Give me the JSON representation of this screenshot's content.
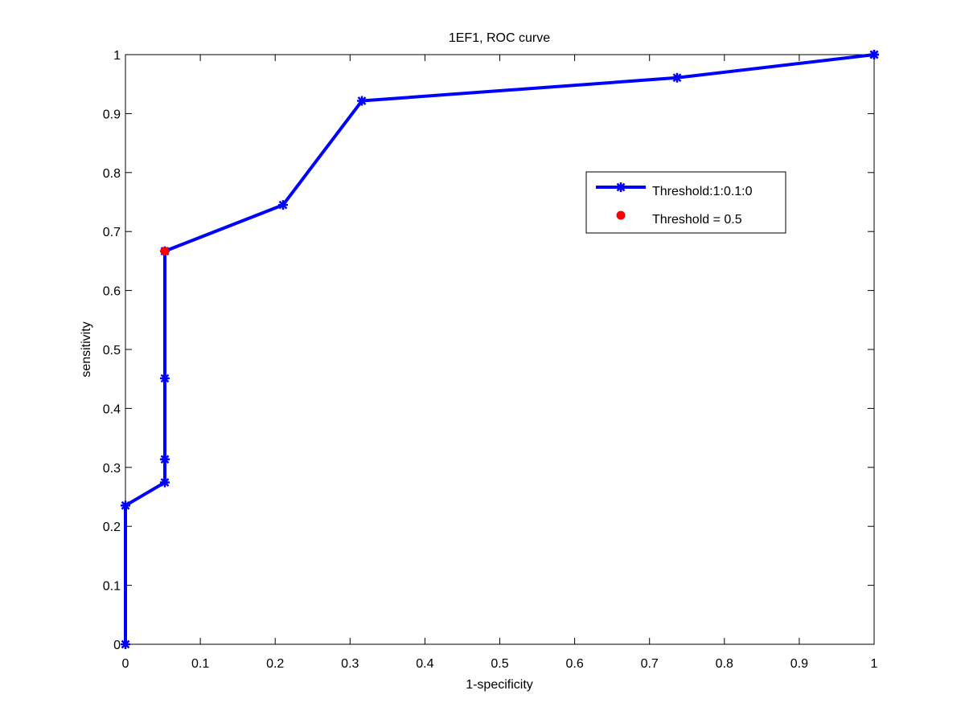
{
  "chart_data": {
    "type": "line",
    "title": "1EF1, ROC curve",
    "xlabel": "1-specificity",
    "ylabel": "sensitivity",
    "xlim": [
      0,
      1
    ],
    "ylim": [
      0,
      1
    ],
    "xticks": [
      "0",
      "0.1",
      "0.2",
      "0.3",
      "0.4",
      "0.5",
      "0.6",
      "0.7",
      "0.8",
      "0.9",
      "1"
    ],
    "yticks": [
      "0",
      "0.1",
      "0.2",
      "0.3",
      "0.4",
      "0.5",
      "0.6",
      "0.7",
      "0.8",
      "0.9",
      "1"
    ],
    "grid": false,
    "legend_position": "top-right",
    "series": [
      {
        "name": "Threshold:1:0.1:0",
        "color": "#0000ff",
        "marker": "asterisk",
        "x": [
          0,
          0,
          0.0526,
          0.0526,
          0.0526,
          0.0526,
          0.2105,
          0.3158,
          0.7368,
          1,
          1
        ],
        "y": [
          0,
          0.2353,
          0.2745,
          0.3137,
          0.451,
          0.6667,
          0.7451,
          0.9216,
          0.9608,
          1,
          1
        ]
      },
      {
        "name": "Threshold = 0.5",
        "color": "#ff0000",
        "marker": "dot",
        "x": [
          0.0526
        ],
        "y": [
          0.6667
        ]
      }
    ]
  }
}
